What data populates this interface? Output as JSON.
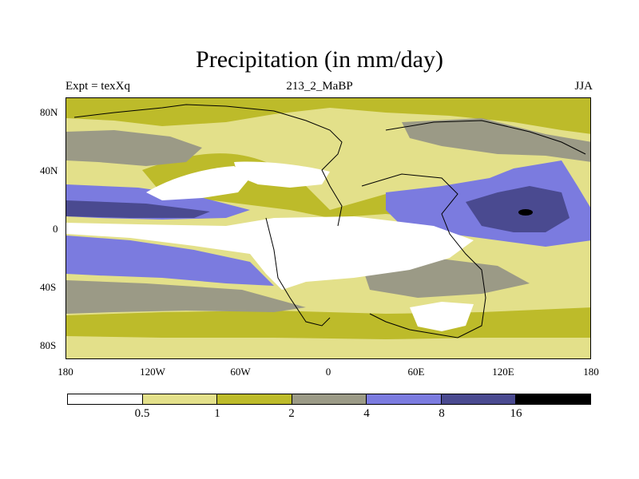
{
  "title": "Precipitation (in mm/day)",
  "subtitle_left": "Expt = texXq",
  "subtitle_center": "213_2_MaBP",
  "subtitle_right": "JJA",
  "y_ticks": [
    "80N",
    "40N",
    "0",
    "40S",
    "80S"
  ],
  "x_ticks": [
    "180",
    "120W",
    "60W",
    "0",
    "60E",
    "120E",
    "180"
  ],
  "colorbar": {
    "colors": [
      "#ffffff",
      "#e3e08a",
      "#bdbb2a",
      "#9b9a86",
      "#7b7bdf",
      "#4a4a90",
      "#000000"
    ],
    "labels": [
      "0.5",
      "1",
      "2",
      "4",
      "8",
      "16"
    ]
  },
  "chart_data": {
    "type": "heatmap",
    "title": "Precipitation (in mm/day)",
    "units": "mm/day",
    "experiment": "texXq",
    "period": "213_2_MaBP",
    "season": "JJA",
    "xlim": [
      -180,
      180
    ],
    "ylim": [
      -90,
      90
    ],
    "contour_levels": [
      0.5,
      1,
      2,
      4,
      8,
      16
    ]
  }
}
